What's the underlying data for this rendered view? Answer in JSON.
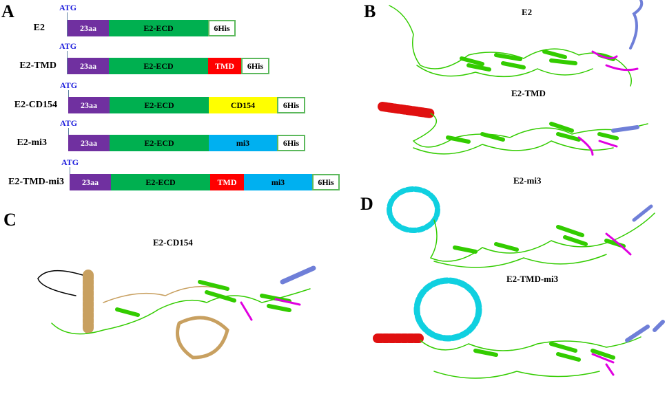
{
  "panels": {
    "a": "A",
    "b": "B",
    "c": "C",
    "d": "D"
  },
  "constructs": [
    {
      "name": "E2",
      "start": "ATG",
      "segments": [
        "23aa",
        "E2-ECD",
        "6His"
      ]
    },
    {
      "name": "E2-TMD",
      "start": "ATG",
      "segments": [
        "23aa",
        "E2-ECD",
        "TMD",
        "6His"
      ]
    },
    {
      "name": "E2-CD154",
      "start": "ATG",
      "segments": [
        "23aa",
        "E2-ECD",
        "CD154",
        "6His"
      ]
    },
    {
      "name": "E2-mi3",
      "start": "ATG",
      "segments": [
        "23aa",
        "E2-ECD",
        "mi3",
        "6His"
      ]
    },
    {
      "name": "E2-TMD-mi3",
      "start": "ATG",
      "segments": [
        "23aa",
        "E2-ECD",
        "TMD",
        "mi3",
        "6His"
      ]
    }
  ],
  "structure_titles": {
    "e2": "E2",
    "e2_tmd": "E2-TMD",
    "e2_mi3": "E2-mi3",
    "e2_cd154": "E2-CD154",
    "e2_tmd_mi3": "E2-TMD-mi3"
  },
  "colors": {
    "signal": "#7030a0",
    "ecd": "#00b050",
    "tmd": "#ff0000",
    "cd154": "#ffff00",
    "mi3": "#00b0f0",
    "his_border": "#5cb85c",
    "strand": "#33cc00",
    "loop_magenta": "#e000e0",
    "helix_blue": "#6f7fd8",
    "helix_red": "#e01010",
    "mi3_cyan": "#10d0e0",
    "cd154_tan": "#c8a060"
  }
}
